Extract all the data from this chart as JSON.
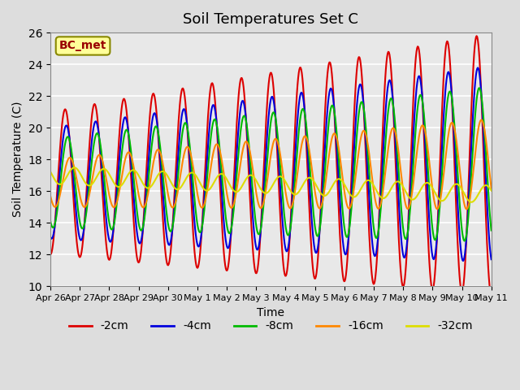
{
  "title": "Soil Temperatures Set C",
  "xlabel": "Time",
  "ylabel": "Soil Temperature (C)",
  "ylim": [
    10,
    26
  ],
  "yticks": [
    10,
    12,
    14,
    16,
    18,
    20,
    22,
    24,
    26
  ],
  "label_box_text": "BC_met",
  "label_box_color": "#ffff99",
  "label_box_edge": "#888800",
  "label_text_color": "#990000",
  "series": {
    "-2cm": {
      "color": "#dd0000",
      "lw": 1.5
    },
    "-4cm": {
      "color": "#0000dd",
      "lw": 1.5
    },
    "-8cm": {
      "color": "#00bb00",
      "lw": 1.5
    },
    "-16cm": {
      "color": "#ff8800",
      "lw": 1.5
    },
    "-32cm": {
      "color": "#dddd00",
      "lw": 1.5
    }
  },
  "x_tick_labels": [
    "Apr 26",
    "Apr 27",
    "Apr 28",
    "Apr 29",
    "Apr 30",
    "May 1",
    "May 2",
    "May 3",
    "May 4",
    "May 5",
    "May 6",
    "May 7",
    "May 8",
    "May 9",
    "May 10",
    "May 11"
  ],
  "legend_order": [
    "-2cm",
    "-4cm",
    "-8cm",
    "-16cm",
    "-32cm"
  ],
  "background_color": "#e8e8e8",
  "grid_color": "#ffffff"
}
